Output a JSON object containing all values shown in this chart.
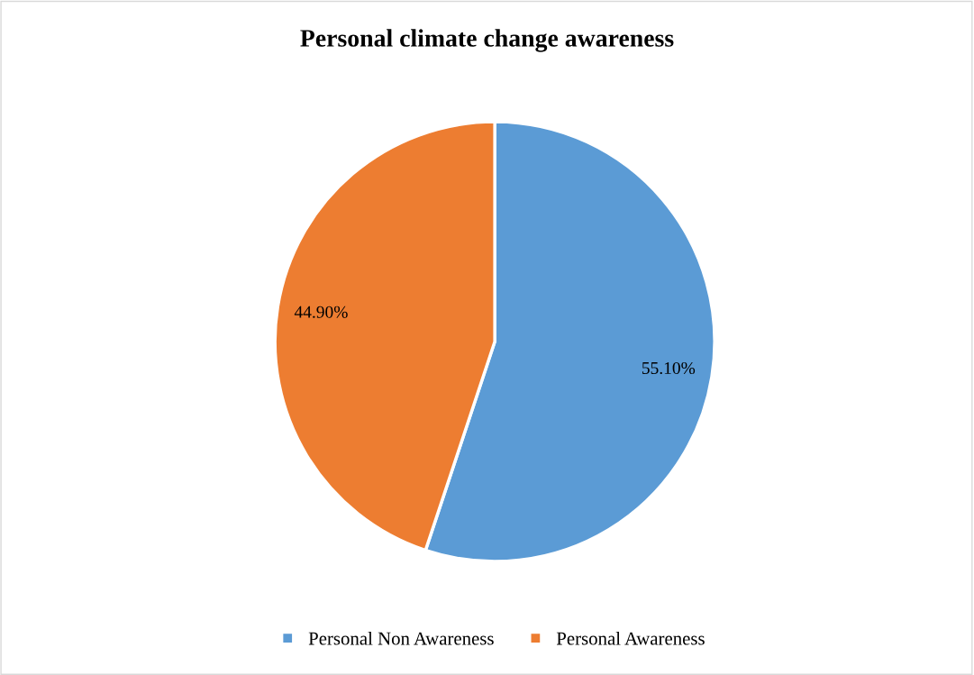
{
  "chart_data": {
    "type": "pie",
    "title": "Personal climate change awareness",
    "categories": [
      "Personal Non Awareness",
      "Personal Awareness"
    ],
    "values": [
      55.1,
      44.9
    ],
    "colors": [
      "#5b9bd5",
      "#ed7d31"
    ],
    "value_labels": [
      "55.10%",
      "44.90%"
    ],
    "legend": "bottom"
  }
}
